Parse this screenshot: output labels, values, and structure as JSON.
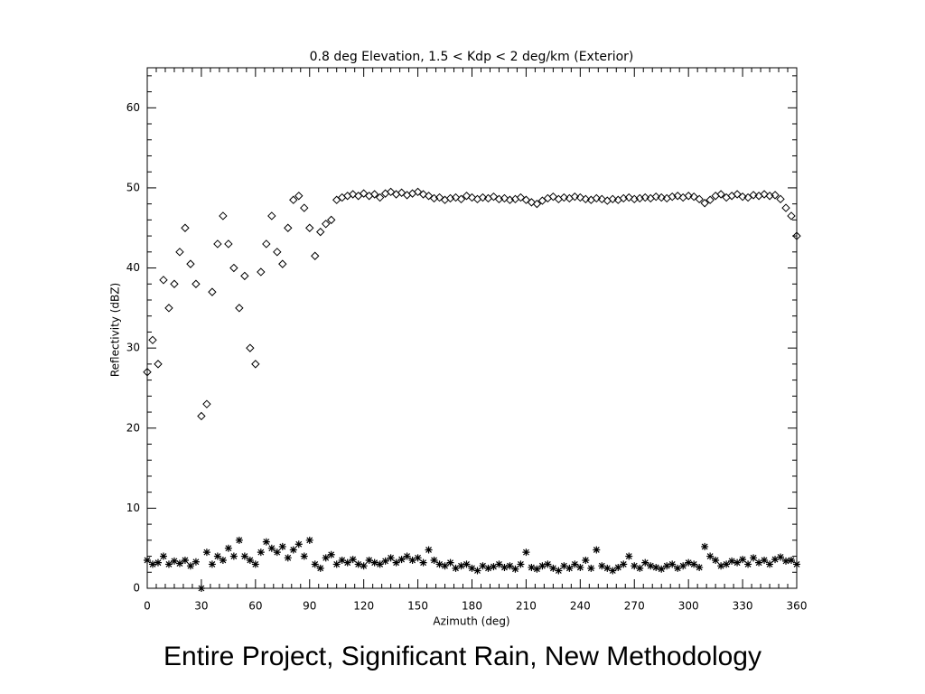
{
  "chart_data": {
    "type": "scatter",
    "title": "0.8 deg Elevation, 1.5 < Kdp < 2 deg/km (Exterior)",
    "x_label": "Azimuth (deg)",
    "y_label": "Reflectivity (dBZ)",
    "caption": "Entire Project, Significant Rain, New Methodology",
    "xlim": [
      0,
      360
    ],
    "xticks": [
      0,
      30,
      60,
      90,
      120,
      150,
      180,
      210,
      240,
      270,
      300,
      330,
      360
    ],
    "ylim": [
      0,
      65
    ],
    "yticks": [
      0,
      10,
      20,
      30,
      40,
      50,
      60
    ],
    "grid": false,
    "x": [
      0,
      3,
      6,
      9,
      12,
      15,
      18,
      21,
      24,
      27,
      30,
      33,
      36,
      39,
      42,
      45,
      48,
      51,
      54,
      57,
      60,
      63,
      66,
      69,
      72,
      75,
      78,
      81,
      84,
      87,
      90,
      93,
      96,
      99,
      102,
      105,
      108,
      111,
      114,
      117,
      120,
      123,
      126,
      129,
      132,
      135,
      138,
      141,
      144,
      147,
      150,
      153,
      156,
      159,
      162,
      165,
      168,
      171,
      174,
      177,
      180,
      183,
      186,
      189,
      192,
      195,
      198,
      201,
      204,
      207,
      210,
      213,
      216,
      219,
      222,
      225,
      228,
      231,
      234,
      237,
      240,
      243,
      246,
      249,
      252,
      255,
      258,
      261,
      264,
      267,
      270,
      273,
      276,
      279,
      282,
      285,
      288,
      291,
      294,
      297,
      300,
      303,
      306,
      309,
      312,
      315,
      318,
      321,
      324,
      327,
      330,
      333,
      336,
      339,
      342,
      345,
      348,
      351,
      354,
      357,
      360
    ],
    "series": [
      {
        "color": "#000000",
        "marker": "diamond",
        "values": [
          27,
          31,
          28,
          38.5,
          35,
          38,
          42,
          45,
          40.5,
          38,
          21.5,
          23,
          37,
          43,
          46.5,
          43,
          40,
          35,
          39,
          30,
          28,
          39.5,
          43,
          46.5,
          42,
          40.5,
          45,
          48.5,
          49,
          47.5,
          45,
          41.5,
          44.5,
          45.5,
          46,
          48.5,
          48.8,
          49,
          49.2,
          49,
          49.3,
          49,
          49.2,
          48.8,
          49.3,
          49.5,
          49.2,
          49.4,
          49.1,
          49.3,
          49.5,
          49.2,
          49,
          48.7,
          48.8,
          48.5,
          48.7,
          48.8,
          48.6,
          49,
          48.8,
          48.6,
          48.8,
          48.7,
          48.9,
          48.6,
          48.7,
          48.5,
          48.6,
          48.8,
          48.5,
          48.2,
          48,
          48.4,
          48.7,
          48.9,
          48.6,
          48.8,
          48.7,
          48.9,
          48.8,
          48.6,
          48.5,
          48.7,
          48.6,
          48.4,
          48.6,
          48.5,
          48.7,
          48.8,
          48.6,
          48.7,
          48.8,
          48.7,
          48.9,
          48.8,
          48.7,
          48.9,
          49,
          48.8,
          49,
          48.9,
          48.6,
          48.1,
          48.5,
          49,
          49.2,
          48.8,
          49,
          49.2,
          48.9,
          48.8,
          49.1,
          49,
          49.2,
          49,
          49.1,
          48.6,
          47.5,
          46.5,
          44
        ]
      },
      {
        "color": "#000000",
        "marker": "asterisk",
        "values": [
          3.5,
          3,
          3.2,
          4,
          3,
          3.4,
          3.1,
          3.5,
          2.8,
          3.3,
          0,
          4.5,
          3,
          4,
          3.5,
          5,
          4,
          6,
          4,
          3.5,
          3,
          4.5,
          5.8,
          5,
          4.5,
          5.2,
          3.8,
          4.8,
          5.5,
          4,
          6,
          3,
          2.5,
          3.8,
          4.2,
          3,
          3.5,
          3.2,
          3.6,
          3,
          2.8,
          3.5,
          3.2,
          3,
          3.4,
          3.8,
          3.2,
          3.6,
          4,
          3.5,
          3.8,
          3.2,
          4.8,
          3.5,
          3,
          2.8,
          3.2,
          2.5,
          2.8,
          3,
          2.5,
          2.2,
          2.8,
          2.5,
          2.7,
          3,
          2.6,
          2.8,
          2.4,
          3,
          4.5,
          2.6,
          2.4,
          2.8,
          3,
          2.5,
          2.2,
          2.8,
          2.5,
          3,
          2.6,
          3.5,
          2.5,
          4.8,
          2.8,
          2.5,
          2.2,
          2.6,
          3,
          4,
          2.8,
          2.5,
          3.2,
          2.8,
          2.6,
          2.4,
          2.8,
          3,
          2.5,
          2.8,
          3.2,
          3,
          2.6,
          5.2,
          4,
          3.5,
          2.8,
          3,
          3.4,
          3.2,
          3.6,
          3,
          3.8,
          3.2,
          3.5,
          3,
          3.6,
          3.9,
          3.4,
          3.5,
          3.0
        ]
      }
    ]
  }
}
